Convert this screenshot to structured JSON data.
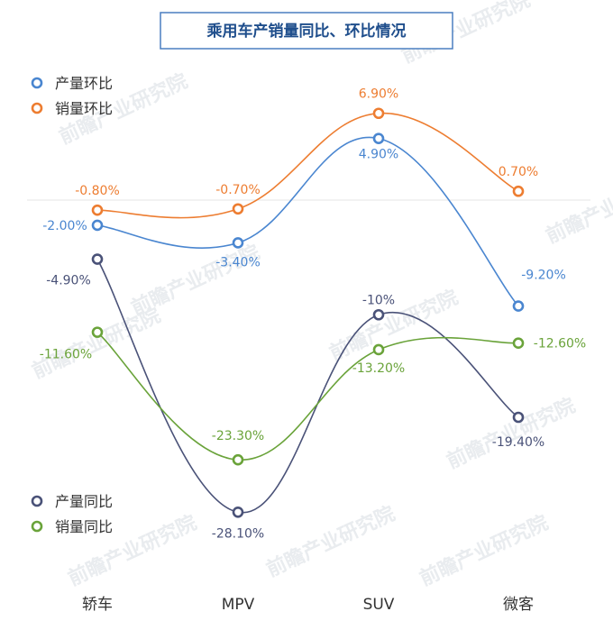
{
  "chart_data": {
    "type": "line",
    "title": "乘用车产销量同比、环比情况",
    "categories": [
      "轿车",
      "MPV",
      "SUV",
      "微客"
    ],
    "series": [
      {
        "name": "产量环比",
        "color": "#4a86d0",
        "values": [
          -2.0,
          -3.4,
          4.9,
          -9.2
        ],
        "labels": [
          "-2.00%",
          "-3.40%",
          "4.90%",
          "-9.20%"
        ]
      },
      {
        "name": "销量环比",
        "color": "#ed7d31",
        "values": [
          -0.8,
          -0.7,
          6.9,
          0.7
        ],
        "labels": [
          "-0.80%",
          "-0.70%",
          "6.90%",
          "0.70%"
        ]
      },
      {
        "name": "产量同比",
        "color": "#4a5278",
        "values": [
          -4.9,
          -28.1,
          -10.0,
          -19.4
        ],
        "labels": [
          "-4.90%",
          "-28.10%",
          "-10%",
          "-19.40%"
        ]
      },
      {
        "name": "销量同比",
        "color": "#6aa33a",
        "values": [
          -11.6,
          -23.3,
          -13.2,
          -12.6
        ],
        "labels": [
          "-11.60%",
          "-23.30%",
          "-13.20%",
          "-12.60%"
        ]
      }
    ],
    "legend": [
      "top-left",
      "bottom-left"
    ]
  },
  "watermark": "前瞻产业研究院"
}
